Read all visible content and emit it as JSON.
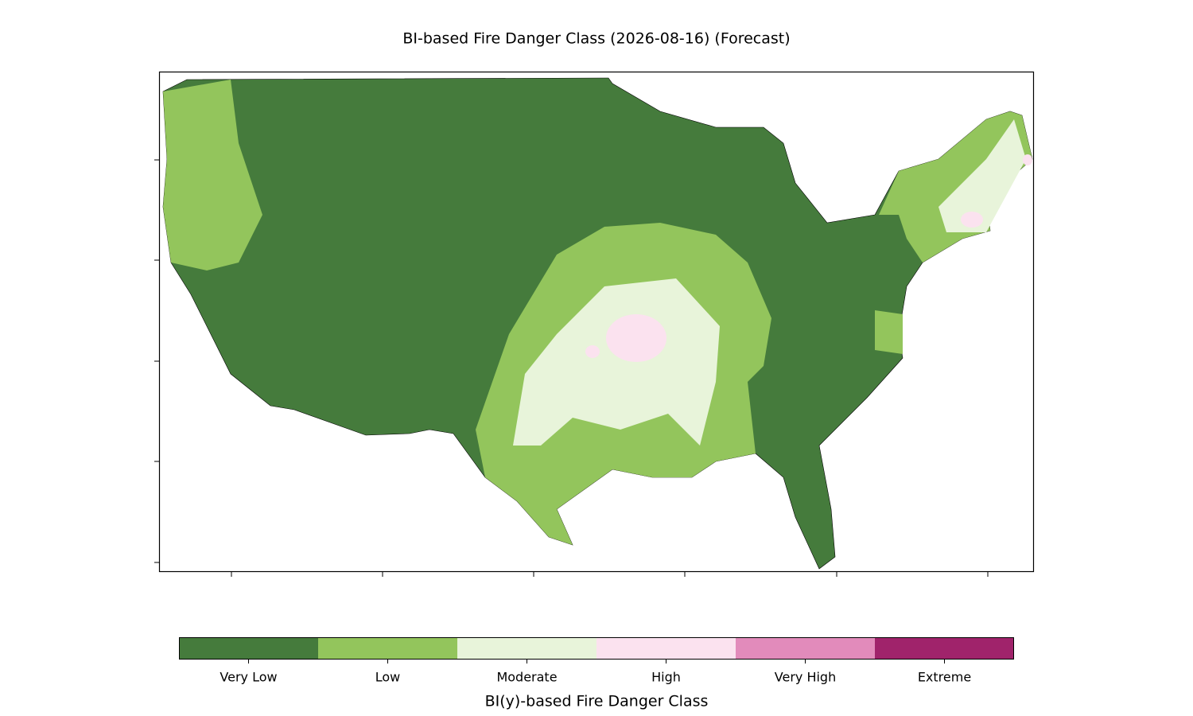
{
  "title": "BI-based Fire Danger Class (2026-08-16) (Forecast)",
  "colorbar": {
    "label": "BI(y)-based Fire Danger Class",
    "classes": [
      {
        "name": "Very Low",
        "color": "#457b3c"
      },
      {
        "name": "Low",
        "color": "#93c55c"
      },
      {
        "name": "Moderate",
        "color": "#e8f4da"
      },
      {
        "name": "High",
        "color": "#fbe2ef"
      },
      {
        "name": "Very High",
        "color": "#e28bbb"
      },
      {
        "name": "Extreme",
        "color": "#a0236b"
      }
    ]
  }
}
